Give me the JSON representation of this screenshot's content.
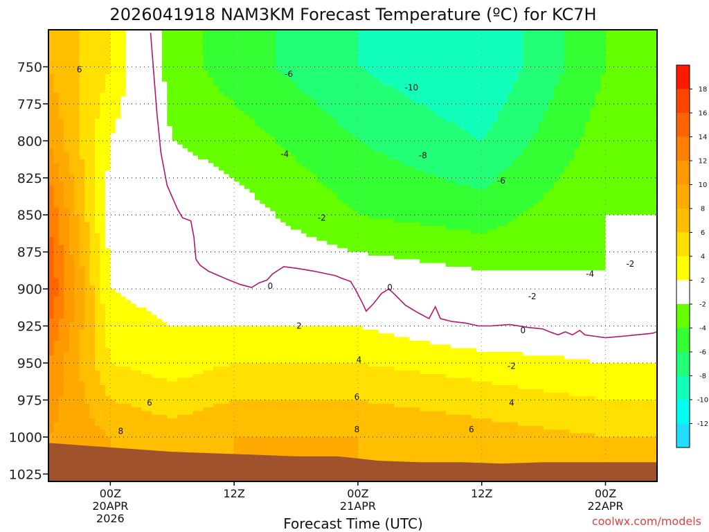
{
  "chart_data": {
    "type": "heatmap",
    "title": "2026041918 NAM3KM Forecast Temperature (ºC) for KC7H",
    "xlabel": "Forecast Time (UTC)",
    "ylabel": "",
    "credit": "coolwx.com/models",
    "y_axis": {
      "unit": "hPa",
      "inverted": true,
      "range": [
        725,
        1030
      ],
      "ticks": [
        750,
        775,
        800,
        825,
        850,
        875,
        900,
        925,
        950,
        975,
        1000,
        1025
      ],
      "tick_labels": [
        "750",
        "775",
        "800",
        "825",
        "850",
        "875",
        "900",
        "925",
        "950",
        "975",
        "1000",
        "1025"
      ]
    },
    "x_axis": {
      "unit": "hours from 2026-04-19 18Z",
      "range": [
        0,
        59
      ],
      "ticks": [
        {
          "hour": 6,
          "lines": [
            "00Z",
            "20APR",
            "2026"
          ]
        },
        {
          "hour": 18,
          "lines": [
            "12Z"
          ]
        },
        {
          "hour": 30,
          "lines": [
            "00Z",
            "21APR"
          ]
        },
        {
          "hour": 42,
          "lines": [
            "12Z"
          ]
        },
        {
          "hour": 54,
          "lines": [
            "00Z",
            "22APR"
          ]
        }
      ]
    },
    "colorbar": {
      "labels": [
        "18",
        "16",
        "14",
        "12",
        "10",
        "8",
        "6",
        "4",
        "2",
        "-2",
        "-4",
        "-6",
        "-8",
        "-10",
        "-12"
      ],
      "bins": [
        {
          "min": 18,
          "max": 20,
          "color": "#ff1a00"
        },
        {
          "min": 16,
          "max": 18,
          "color": "#ff4500"
        },
        {
          "min": 14,
          "max": 16,
          "color": "#ff6400"
        },
        {
          "min": 12,
          "max": 14,
          "color": "#ff8000"
        },
        {
          "min": 10,
          "max": 12,
          "color": "#ff9900"
        },
        {
          "min": 8,
          "max": 10,
          "color": "#ffaa00"
        },
        {
          "min": 6,
          "max": 8,
          "color": "#ffbf00"
        },
        {
          "min": 4,
          "max": 6,
          "color": "#ffe000"
        },
        {
          "min": 2,
          "max": 4,
          "color": "#ffff00"
        },
        {
          "min": -2,
          "max": 2,
          "color": "#ffffff"
        },
        {
          "min": -4,
          "max": -2,
          "color": "#66ff00"
        },
        {
          "min": -6,
          "max": -4,
          "color": "#33ff33"
        },
        {
          "min": -8,
          "max": -6,
          "color": "#22ff77"
        },
        {
          "min": -10,
          "max": -8,
          "color": "#11ffbb"
        },
        {
          "min": -12,
          "max": -10,
          "color": "#00ffee"
        },
        {
          "min": -14,
          "max": -12,
          "color": "#22ddff"
        }
      ]
    },
    "temperature_profiles": [
      {
        "hour": 0,
        "levels": [
          [
            750,
            8
          ],
          [
            800,
            10
          ],
          [
            850,
            14
          ],
          [
            900,
            16
          ],
          [
            950,
            12
          ],
          [
            1000,
            10
          ]
        ]
      },
      {
        "hour": 6,
        "levels": [
          [
            750,
            4
          ],
          [
            800,
            2
          ],
          [
            850,
            1
          ],
          [
            900,
            2
          ],
          [
            950,
            4
          ],
          [
            975,
            6
          ],
          [
            1000,
            8
          ]
        ]
      },
      {
        "hour": 12,
        "levels": [
          [
            750,
            -3
          ],
          [
            800,
            -2
          ],
          [
            850,
            0
          ],
          [
            900,
            1
          ],
          [
            950,
            3
          ],
          [
            975,
            5
          ],
          [
            1000,
            7
          ]
        ]
      },
      {
        "hour": 18,
        "levels": [
          [
            750,
            -5
          ],
          [
            800,
            -3
          ],
          [
            850,
            -1
          ],
          [
            900,
            0
          ],
          [
            925,
            2
          ],
          [
            950,
            4
          ],
          [
            975,
            6
          ],
          [
            1000,
            8
          ]
        ]
      },
      {
        "hour": 30,
        "levels": [
          [
            750,
            -8
          ],
          [
            800,
            -6
          ],
          [
            850,
            -4
          ],
          [
            875,
            -2
          ],
          [
            900,
            0
          ],
          [
            925,
            2
          ],
          [
            950,
            4
          ],
          [
            975,
            6
          ],
          [
            1000,
            8
          ]
        ]
      },
      {
        "hour": 42,
        "levels": [
          [
            750,
            -10
          ],
          [
            800,
            -8
          ],
          [
            850,
            -5
          ],
          [
            875,
            -3
          ],
          [
            900,
            -1
          ],
          [
            925,
            0
          ],
          [
            950,
            3
          ],
          [
            975,
            5
          ],
          [
            1000,
            7
          ]
        ]
      },
      {
        "hour": 54,
        "levels": [
          [
            750,
            -4
          ],
          [
            800,
            -3
          ],
          [
            850,
            -2
          ],
          [
            900,
            -2
          ],
          [
            925,
            0
          ],
          [
            950,
            2
          ],
          [
            975,
            4
          ],
          [
            1000,
            6
          ]
        ]
      }
    ],
    "contour_labels": [
      {
        "text": "6",
        "hour": 3.0,
        "p": 752
      },
      {
        "text": "-6",
        "hour": 23.3,
        "p": 755
      },
      {
        "text": "-10",
        "hour": 35.2,
        "p": 764
      },
      {
        "text": "-4",
        "hour": 22.9,
        "p": 809
      },
      {
        "text": "-8",
        "hour": 36.3,
        "p": 810
      },
      {
        "text": "-6",
        "hour": 43.9,
        "p": 827
      },
      {
        "text": "-2",
        "hour": 26.5,
        "p": 852
      },
      {
        "text": "-2",
        "hour": 56.4,
        "p": 883
      },
      {
        "text": "-4",
        "hour": 52.5,
        "p": 890
      },
      {
        "text": "0",
        "hour": 21.5,
        "p": 898
      },
      {
        "text": "0",
        "hour": 33.1,
        "p": 899
      },
      {
        "text": "-2",
        "hour": 46.9,
        "p": 905
      },
      {
        "text": "2",
        "hour": 24.3,
        "p": 925
      },
      {
        "text": "0",
        "hour": 46.0,
        "p": 928
      },
      {
        "text": "4",
        "hour": 30.1,
        "p": 948
      },
      {
        "text": "-2",
        "hour": 44.9,
        "p": 952
      },
      {
        "text": "4",
        "hour": 44.9,
        "p": 977
      },
      {
        "text": "6",
        "hour": 9.8,
        "p": 977
      },
      {
        "text": "6",
        "hour": 29.9,
        "p": 973
      },
      {
        "text": "8",
        "hour": 7.0,
        "p": 996
      },
      {
        "text": "8",
        "hour": 29.9,
        "p": 995
      },
      {
        "text": "6",
        "hour": 41.0,
        "p": 995
      }
    ],
    "zero_line": [
      [
        9.9,
        727
      ],
      [
        10.5,
        780
      ],
      [
        10.9,
        808
      ],
      [
        11.5,
        830
      ],
      [
        12.5,
        846
      ],
      [
        13.0,
        852
      ],
      [
        13.8,
        854
      ],
      [
        14.1,
        865
      ],
      [
        14.3,
        880
      ],
      [
        14.7,
        884
      ],
      [
        15.5,
        888
      ],
      [
        16.5,
        891
      ],
      [
        17.5,
        894
      ],
      [
        18.6,
        897
      ],
      [
        19.7,
        899
      ],
      [
        20.4,
        896
      ],
      [
        21.2,
        894
      ],
      [
        21.7,
        890
      ],
      [
        22.8,
        885
      ],
      [
        24.0,
        886
      ],
      [
        25.7,
        888
      ],
      [
        27.8,
        891
      ],
      [
        28.5,
        893
      ],
      [
        29.3,
        895
      ],
      [
        29.8,
        901
      ],
      [
        30.4,
        909
      ],
      [
        30.8,
        915
      ],
      [
        31.5,
        910
      ],
      [
        32.3,
        903
      ],
      [
        33.0,
        900
      ],
      [
        33.6,
        904
      ],
      [
        34.6,
        911
      ],
      [
        35.8,
        916
      ],
      [
        36.9,
        920
      ],
      [
        37.5,
        912
      ],
      [
        38.0,
        920
      ],
      [
        39.1,
        922
      ],
      [
        40.4,
        923
      ],
      [
        41.7,
        925
      ],
      [
        42.9,
        925
      ],
      [
        44.7,
        924
      ],
      [
        46.5,
        926
      ],
      [
        47.9,
        927
      ],
      [
        48.6,
        929
      ],
      [
        49.4,
        931
      ],
      [
        50.1,
        929
      ],
      [
        50.8,
        931
      ],
      [
        51.5,
        928
      ],
      [
        52.0,
        931
      ],
      [
        53.0,
        932
      ],
      [
        54.0,
        933
      ],
      [
        55.6,
        932
      ],
      [
        57.0,
        931
      ],
      [
        58.5,
        930
      ],
      [
        59.0,
        929
      ]
    ],
    "surface_pressure_hpa": [
      [
        0,
        1004
      ],
      [
        4,
        1006
      ],
      [
        8,
        1008
      ],
      [
        12,
        1010
      ],
      [
        16,
        1011
      ],
      [
        20,
        1012
      ],
      [
        24,
        1013
      ],
      [
        28,
        1013
      ],
      [
        32,
        1016
      ],
      [
        36,
        1017
      ],
      [
        40,
        1017
      ],
      [
        44,
        1018
      ],
      [
        48,
        1017
      ],
      [
        52,
        1017
      ],
      [
        56,
        1017
      ],
      [
        59,
        1017
      ]
    ]
  }
}
